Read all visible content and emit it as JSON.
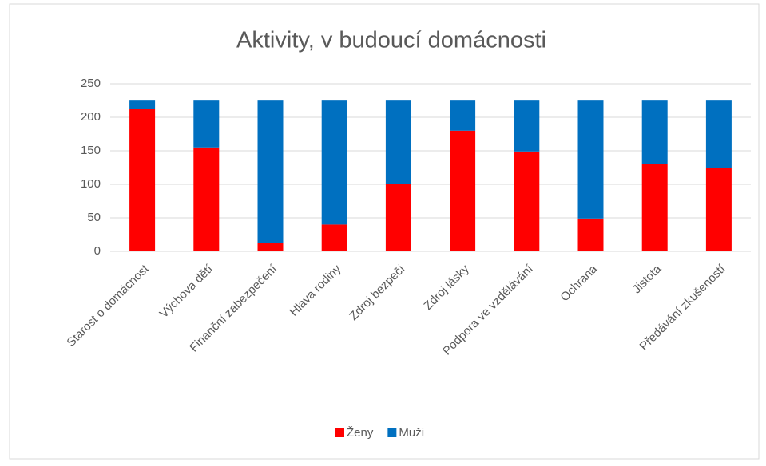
{
  "chart_data": {
    "type": "stacked_bar",
    "title": "Aktivity, v budoucí domácnosti",
    "categories": [
      "Starost o domácnost",
      "Výchova dětí",
      "Finanční zabezpečení",
      "Hlava rodiny",
      "Zdroj bezpečí",
      "Zdroj lásky",
      "Podpora ve vzdělávání",
      "Ochrana",
      "Jistota",
      "Předávání zkušeností"
    ],
    "series": [
      {
        "name": "Ženy",
        "color": "#ff0000",
        "values": [
          213,
          155,
          13,
          40,
          100,
          180,
          149,
          49,
          130,
          125
        ]
      },
      {
        "name": "Muži",
        "color": "#0070c0",
        "values": [
          13,
          71,
          213,
          186,
          126,
          46,
          77,
          177,
          96,
          101
        ]
      }
    ],
    "ylim": [
      0,
      250
    ],
    "yticks": [
      0,
      50,
      100,
      150,
      200,
      250
    ],
    "grid": true,
    "legend": "bottom"
  }
}
